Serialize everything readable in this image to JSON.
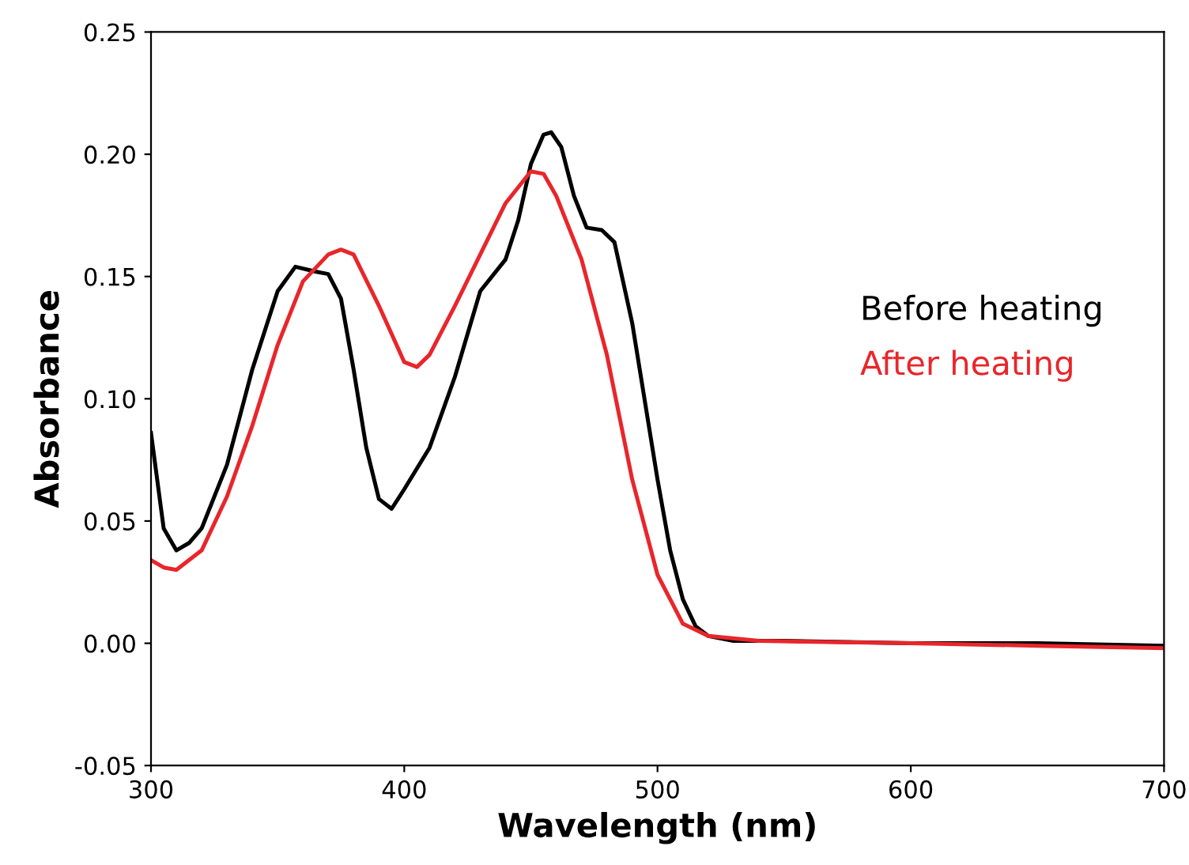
{
  "chart_data": {
    "type": "line",
    "xlabel": "Wavelength (nm)",
    "ylabel": "Absorbance",
    "xlim": [
      300,
      700
    ],
    "xticks": [
      300,
      400,
      500,
      600,
      700
    ],
    "ylim": [
      -0.05,
      0.25
    ],
    "yticks": [
      {
        "value": -0.05,
        "label": "-0.05"
      },
      {
        "value": 0,
        "label": "0.00"
      },
      {
        "value": 0.05,
        "label": "0.05"
      },
      {
        "value": 0.1,
        "label": "0.10"
      },
      {
        "value": 0.15,
        "label": "0.15"
      },
      {
        "value": 0.2,
        "label": "0.20"
      },
      {
        "value": 0.25,
        "label": "0.25"
      }
    ],
    "grid": false,
    "legend": "right",
    "marker": "none",
    "line_style": "solid",
    "series": [
      {
        "name": "Before heating",
        "color": "#000000",
        "x": [
          300,
          305,
          310,
          315,
          320,
          330,
          340,
          350,
          357,
          365,
          370,
          375,
          380,
          385,
          390,
          395,
          400,
          410,
          420,
          430,
          440,
          445,
          450,
          455,
          458,
          462,
          467,
          472,
          478,
          483,
          490,
          495,
          500,
          505,
          510,
          515,
          520,
          530,
          550,
          600,
          650,
          700
        ],
        "values": [
          0.086,
          0.047,
          0.038,
          0.041,
          0.047,
          0.073,
          0.112,
          0.144,
          0.154,
          0.152,
          0.151,
          0.141,
          0.112,
          0.08,
          0.059,
          0.055,
          0.063,
          0.08,
          0.109,
          0.144,
          0.157,
          0.173,
          0.196,
          0.208,
          0.209,
          0.203,
          0.183,
          0.17,
          0.169,
          0.164,
          0.131,
          0.099,
          0.067,
          0.038,
          0.018,
          0.007,
          0.003,
          0.001,
          0.001,
          0.0,
          0.0,
          -0.001
        ]
      },
      {
        "name": "After heating",
        "color": "#e8262b",
        "x": [
          300,
          305,
          310,
          320,
          330,
          340,
          350,
          360,
          370,
          375,
          380,
          390,
          400,
          405,
          410,
          420,
          430,
          440,
          450,
          455,
          460,
          470,
          480,
          490,
          500,
          510,
          520,
          540,
          600,
          650,
          700
        ],
        "values": [
          0.034,
          0.031,
          0.03,
          0.038,
          0.06,
          0.089,
          0.122,
          0.148,
          0.159,
          0.161,
          0.159,
          0.138,
          0.115,
          0.113,
          0.118,
          0.138,
          0.159,
          0.18,
          0.193,
          0.192,
          0.183,
          0.157,
          0.118,
          0.067,
          0.028,
          0.008,
          0.003,
          0.001,
          0.0,
          -0.001,
          -0.002
        ]
      }
    ]
  }
}
